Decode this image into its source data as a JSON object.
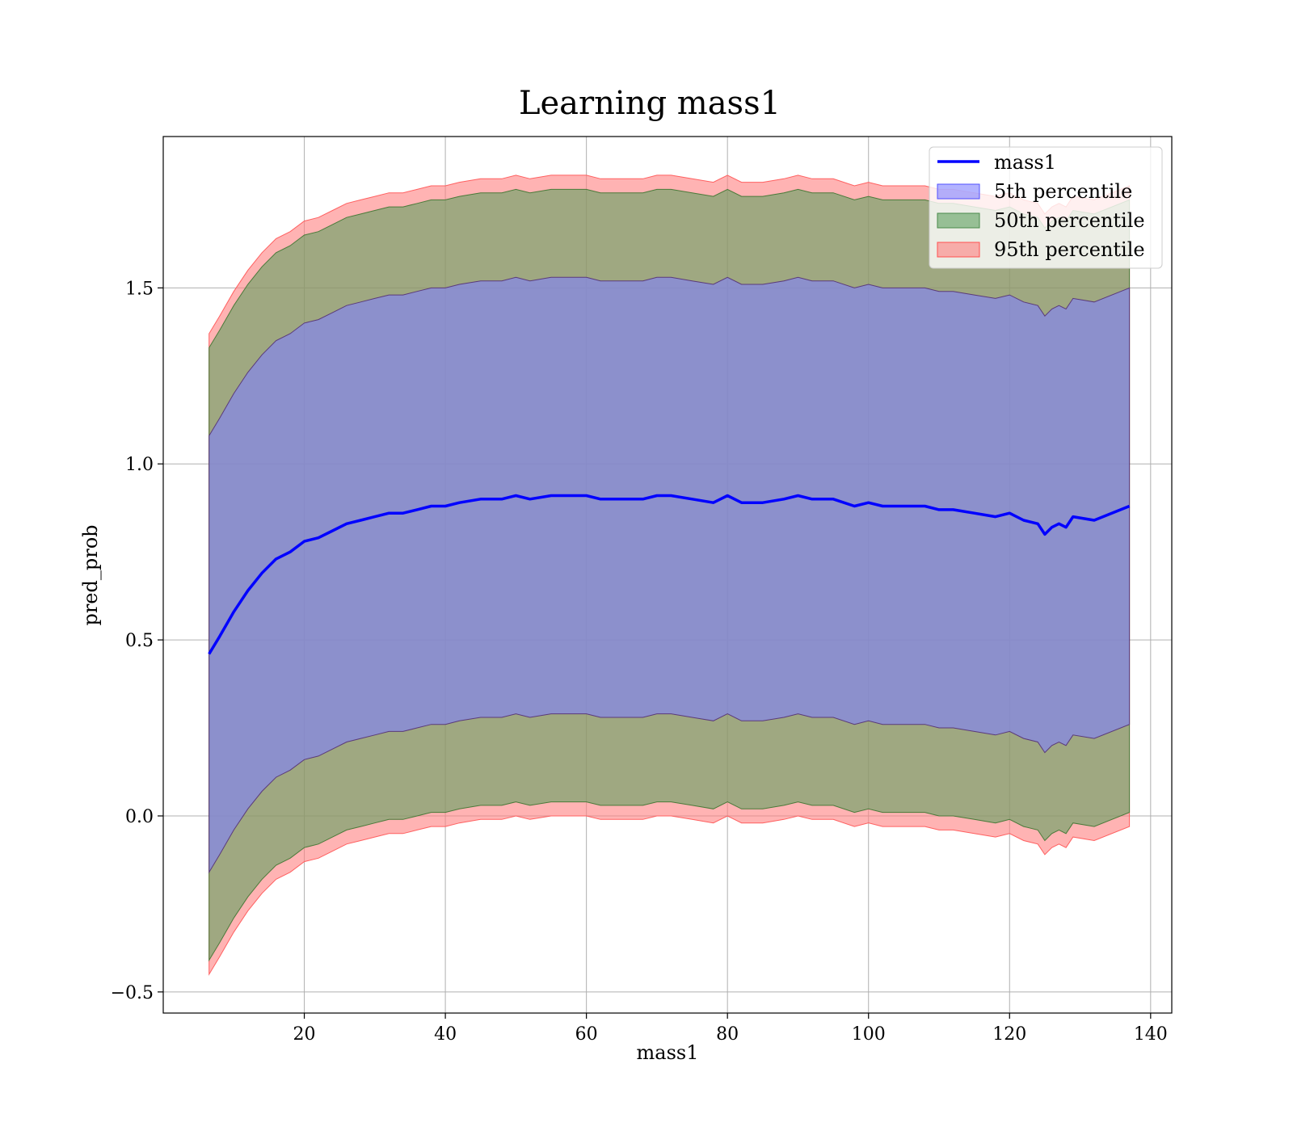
{
  "chart_data": {
    "type": "area",
    "title": "Learning mass1",
    "xlabel": "mass1",
    "ylabel": "pred_prob",
    "xlim": [
      0,
      143
    ],
    "ylim": [
      -0.56,
      1.93
    ],
    "xticks": [
      20,
      40,
      60,
      80,
      100,
      120,
      140
    ],
    "yticks": [
      -0.5,
      0.0,
      0.5,
      1.0,
      1.5
    ],
    "ytick_labels": [
      "−0.5",
      "0.0",
      "0.5",
      "1.0",
      "1.5"
    ],
    "grid": true,
    "legend_position": "top-right",
    "colors": {
      "line": "#0000ff",
      "band_5th": "#8080ff",
      "band_50th": "#5fa05f",
      "band_95th": "#ff8080"
    },
    "line_series": {
      "name": "mass1",
      "x": [
        6.5,
        8,
        10,
        12,
        14,
        16,
        18,
        20,
        22,
        24,
        26,
        28,
        30,
        32,
        34,
        36,
        38,
        40,
        42,
        45,
        48,
        50,
        52,
        55,
        58,
        60,
        62,
        65,
        68,
        70,
        72,
        75,
        78,
        80,
        82,
        85,
        88,
        90,
        92,
        95,
        98,
        100,
        102,
        105,
        108,
        110,
        112,
        115,
        118,
        120,
        122,
        124,
        125,
        126,
        127,
        128,
        129,
        132,
        137
      ],
      "y": [
        0.46,
        0.51,
        0.58,
        0.64,
        0.69,
        0.73,
        0.75,
        0.78,
        0.79,
        0.81,
        0.83,
        0.84,
        0.85,
        0.86,
        0.86,
        0.87,
        0.88,
        0.88,
        0.89,
        0.9,
        0.9,
        0.91,
        0.9,
        0.91,
        0.91,
        0.91,
        0.9,
        0.9,
        0.9,
        0.91,
        0.91,
        0.9,
        0.89,
        0.91,
        0.89,
        0.89,
        0.9,
        0.91,
        0.9,
        0.9,
        0.88,
        0.89,
        0.88,
        0.88,
        0.88,
        0.87,
        0.87,
        0.86,
        0.85,
        0.86,
        0.84,
        0.83,
        0.8,
        0.82,
        0.83,
        0.82,
        0.85,
        0.84,
        0.88
      ]
    },
    "bands": [
      {
        "name": "5th percentile",
        "lower_offset": -0.62,
        "upper_offset": 0.62
      },
      {
        "name": "50th percentile",
        "lower_offset": -0.87,
        "upper_offset": 0.87
      },
      {
        "name": "95th percentile",
        "lower_offset": -0.91,
        "upper_offset": 0.91
      }
    ],
    "legend": [
      "mass1",
      "5th percentile",
      "50th percentile",
      "95th percentile"
    ]
  }
}
